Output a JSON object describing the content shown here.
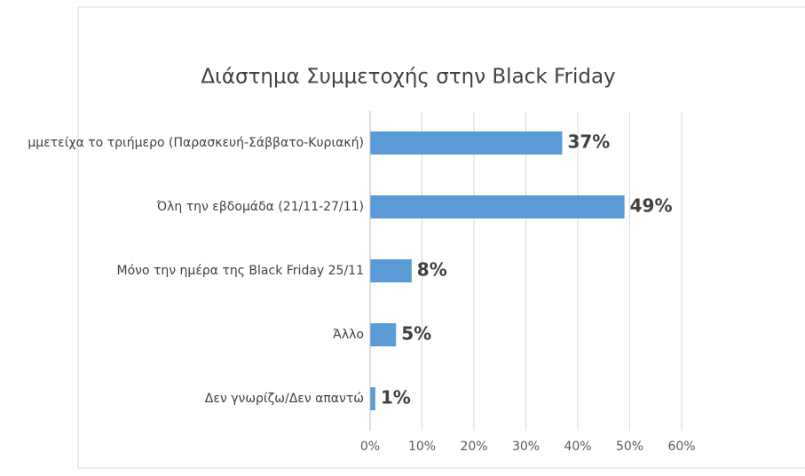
{
  "chart_data": {
    "type": "hbar",
    "title": "Διάστημα Συμμετοχής στην Black Friday",
    "categories": [
      "μμετείχα το τριήμερο (Παρασκευή-Σάββατο-Κυριακή)",
      "Όλη την εβδομάδα (21/11-27/11)",
      "Μόνο την ημέρα της Black Friday 25/11",
      "Άλλο",
      "Δεν γνωρίζω/Δεν απαντώ"
    ],
    "values": [
      37,
      49,
      8,
      5,
      1
    ],
    "value_labels": [
      "37%",
      "49%",
      "8%",
      "5%",
      "1%"
    ],
    "color": "#5b9bd5",
    "xlim": [
      0,
      60
    ],
    "xticks": [
      {
        "value": 0,
        "label": "0%"
      },
      {
        "value": 10,
        "label": "10%"
      },
      {
        "value": 20,
        "label": "20%"
      },
      {
        "value": 30,
        "label": "30%"
      },
      {
        "value": 40,
        "label": "40%"
      },
      {
        "value": 50,
        "label": "50%"
      },
      {
        "value": 60,
        "label": "60%"
      }
    ],
    "grid": true
  }
}
